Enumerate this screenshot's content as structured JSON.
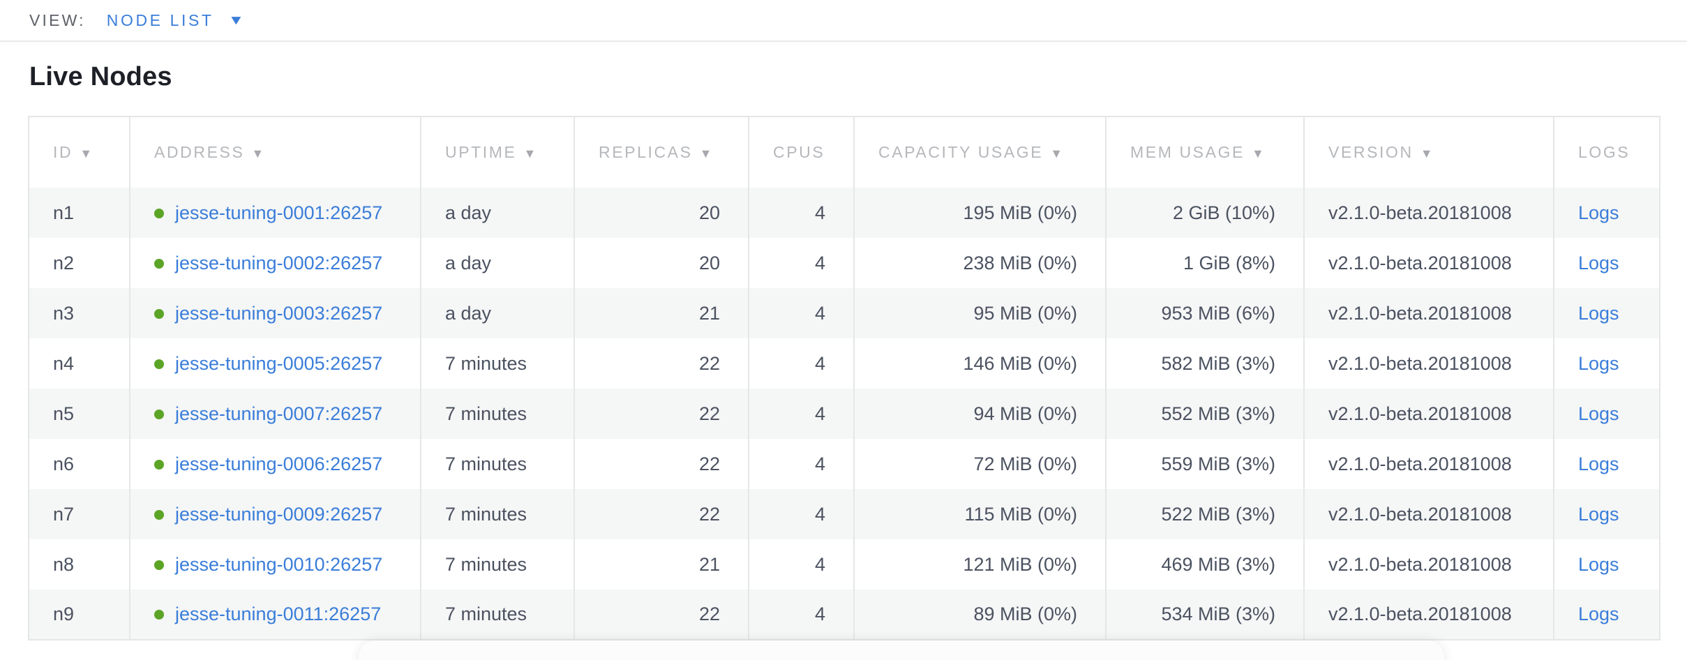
{
  "view_bar": {
    "label": "VIEW:",
    "selected": "NODE LIST"
  },
  "page": {
    "title": "Live Nodes"
  },
  "icons": {
    "sort_desc": "▼",
    "caret_down": "▼"
  },
  "table": {
    "columns": [
      {
        "key": "id",
        "label": "ID",
        "sortable": true
      },
      {
        "key": "address",
        "label": "ADDRESS",
        "sortable": true
      },
      {
        "key": "uptime",
        "label": "UPTIME",
        "sortable": true
      },
      {
        "key": "replicas",
        "label": "REPLICAS",
        "sortable": true
      },
      {
        "key": "cpus",
        "label": "CPUS",
        "sortable": false
      },
      {
        "key": "capacity",
        "label": "CAPACITY USAGE",
        "sortable": true
      },
      {
        "key": "mem",
        "label": "MEM USAGE",
        "sortable": true
      },
      {
        "key": "version",
        "label": "VERSION",
        "sortable": true
      },
      {
        "key": "logs",
        "label": "LOGS",
        "sortable": false
      }
    ],
    "rows": [
      {
        "id": "n1",
        "status": "live",
        "address": "jesse-tuning-0001:26257",
        "uptime": "a day",
        "replicas": "20",
        "cpus": "4",
        "capacity": "195 MiB (0%)",
        "mem": "2 GiB (10%)",
        "version": "v2.1.0-beta.20181008",
        "logs": "Logs"
      },
      {
        "id": "n2",
        "status": "live",
        "address": "jesse-tuning-0002:26257",
        "uptime": "a day",
        "replicas": "20",
        "cpus": "4",
        "capacity": "238 MiB (0%)",
        "mem": "1 GiB (8%)",
        "version": "v2.1.0-beta.20181008",
        "logs": "Logs"
      },
      {
        "id": "n3",
        "status": "live",
        "address": "jesse-tuning-0003:26257",
        "uptime": "a day",
        "replicas": "21",
        "cpus": "4",
        "capacity": "95 MiB (0%)",
        "mem": "953 MiB (6%)",
        "version": "v2.1.0-beta.20181008",
        "logs": "Logs"
      },
      {
        "id": "n4",
        "status": "live",
        "address": "jesse-tuning-0005:26257",
        "uptime": "7 minutes",
        "replicas": "22",
        "cpus": "4",
        "capacity": "146 MiB (0%)",
        "mem": "582 MiB (3%)",
        "version": "v2.1.0-beta.20181008",
        "logs": "Logs"
      },
      {
        "id": "n5",
        "status": "live",
        "address": "jesse-tuning-0007:26257",
        "uptime": "7 minutes",
        "replicas": "22",
        "cpus": "4",
        "capacity": "94 MiB (0%)",
        "mem": "552 MiB (3%)",
        "version": "v2.1.0-beta.20181008",
        "logs": "Logs"
      },
      {
        "id": "n6",
        "status": "live",
        "address": "jesse-tuning-0006:26257",
        "uptime": "7 minutes",
        "replicas": "22",
        "cpus": "4",
        "capacity": "72 MiB (0%)",
        "mem": "559 MiB (3%)",
        "version": "v2.1.0-beta.20181008",
        "logs": "Logs"
      },
      {
        "id": "n7",
        "status": "live",
        "address": "jesse-tuning-0009:26257",
        "uptime": "7 minutes",
        "replicas": "22",
        "cpus": "4",
        "capacity": "115 MiB (0%)",
        "mem": "522 MiB (3%)",
        "version": "v2.1.0-beta.20181008",
        "logs": "Logs"
      },
      {
        "id": "n8",
        "status": "live",
        "address": "jesse-tuning-0010:26257",
        "uptime": "7 minutes",
        "replicas": "21",
        "cpus": "4",
        "capacity": "121 MiB (0%)",
        "mem": "469 MiB (3%)",
        "version": "v2.1.0-beta.20181008",
        "logs": "Logs"
      },
      {
        "id": "n9",
        "status": "live",
        "address": "jesse-tuning-0011:26257",
        "uptime": "7 minutes",
        "replicas": "22",
        "cpus": "4",
        "capacity": "89 MiB (0%)",
        "mem": "534 MiB (3%)",
        "version": "v2.1.0-beta.20181008",
        "logs": "Logs"
      }
    ]
  },
  "colors": {
    "link_blue": "#3a7dd9",
    "live_green": "#5ca426",
    "header_gray": "#b5b7bb",
    "row_stripe": "#f5f6f6",
    "border": "#e5e6e7",
    "body_text": "#4b5260"
  }
}
